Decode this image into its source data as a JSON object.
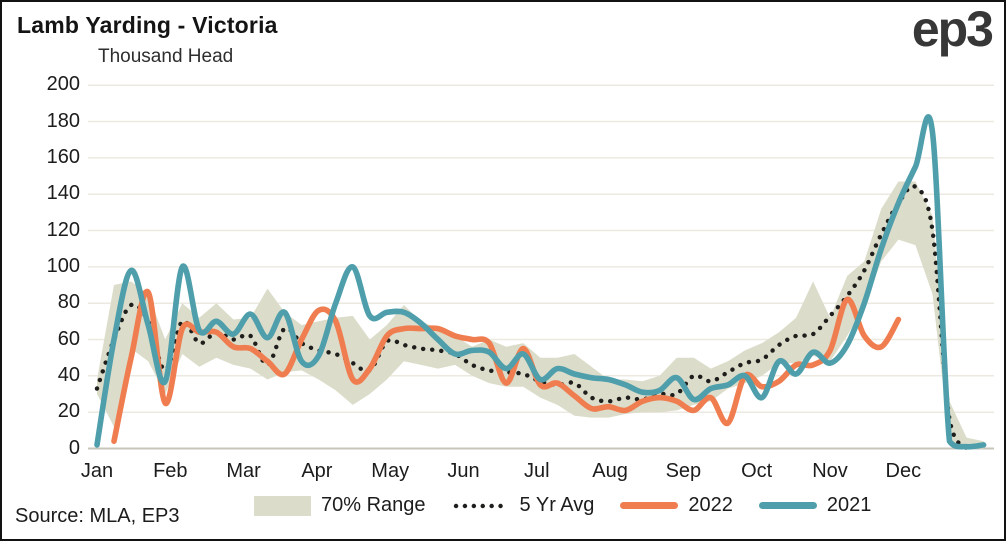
{
  "meta": {
    "title": "Lamb Yarding - Victoria",
    "units_label": "Thousand Head",
    "source": "Source: MLA, EP3",
    "logo": "ep3"
  },
  "colors": {
    "band": "#DCDCCA",
    "avg": "#1E1E1C",
    "y2022": "#EF7D4F",
    "y2021": "#4E9FAB",
    "grid": "#ECEAE0",
    "axis": "#C7C5BA"
  },
  "legend": [
    {
      "label": "70% Range",
      "type": "band"
    },
    {
      "label": "5 Yr Avg",
      "type": "dotted"
    },
    {
      "label": "2022",
      "type": "line"
    },
    {
      "label": "2021",
      "type": "line"
    }
  ],
  "chart_data": {
    "type": "line",
    "title": "Lamb Yarding - Victoria",
    "ylabel": "Thousand Head",
    "ylim": [
      0,
      200
    ],
    "y_ticks": [
      0,
      20,
      40,
      60,
      80,
      100,
      120,
      140,
      160,
      180,
      200
    ],
    "x_tick_labels": [
      "Jan",
      "Feb",
      "Mar",
      "Apr",
      "May",
      "Jun",
      "Jul",
      "Aug",
      "Sep",
      "Oct",
      "Nov",
      "Dec"
    ],
    "x_resolution": "weekly",
    "grid": true,
    "legend_position": "bottom",
    "series": [
      {
        "name": "70% Range",
        "type": "band",
        "lower": [
          30,
          12,
          55,
          48,
          30,
          52,
          45,
          50,
          46,
          44,
          38,
          42,
          43,
          38,
          32,
          24,
          30,
          38,
          48,
          46,
          44,
          46,
          40,
          36,
          34,
          34,
          28,
          24,
          18,
          17,
          17,
          19,
          20,
          20,
          21,
          24,
          26,
          33,
          36,
          40,
          47,
          47,
          51,
          48,
          62,
          78,
          103,
          115,
          112,
          85,
          4,
          0,
          0
        ],
        "upper": [
          38,
          90,
          92,
          85,
          60,
          80,
          72,
          80,
          71,
          72,
          88,
          75,
          68,
          70,
          72,
          73,
          60,
          68,
          79,
          70,
          66,
          62,
          56,
          60,
          56,
          58,
          50,
          50,
          52,
          45,
          38,
          38,
          37,
          40,
          50,
          50,
          44,
          48,
          54,
          58,
          64,
          72,
          92,
          72,
          95,
          103,
          132,
          147,
          147,
          128,
          26,
          6,
          4
        ]
      },
      {
        "name": "5 Yr Avg",
        "type": "dotted",
        "values": [
          33,
          60,
          79,
          70,
          43,
          70,
          58,
          64,
          60,
          62,
          46,
          66,
          58,
          54,
          52,
          47,
          43,
          59,
          57,
          55,
          54,
          52,
          46,
          43,
          42,
          41,
          37,
          35,
          36,
          28,
          26,
          28,
          27,
          30,
          30,
          40,
          37,
          42,
          47,
          49,
          57,
          62,
          63,
          73,
          84,
          98,
          118,
          135,
          144,
          120,
          16,
          0,
          null
        ]
      },
      {
        "name": "2022",
        "type": "line",
        "values": [
          null,
          4,
          50,
          86,
          25,
          66,
          64,
          64,
          56,
          55,
          48,
          41,
          60,
          76,
          70,
          38,
          44,
          62,
          66,
          66,
          66,
          62,
          60,
          58,
          36,
          55,
          35,
          36,
          29,
          22,
          23,
          21,
          26,
          28,
          26,
          21,
          28,
          14,
          40,
          34,
          37,
          46,
          46,
          54,
          82,
          62,
          56,
          71,
          null,
          null,
          null,
          null,
          null
        ]
      },
      {
        "name": "2021",
        "type": "line",
        "values": [
          2,
          60,
          98,
          68,
          37,
          100,
          65,
          70,
          63,
          74,
          61,
          75,
          48,
          51,
          80,
          100,
          73,
          75,
          75,
          69,
          60,
          52,
          54,
          53,
          44,
          52,
          38,
          44,
          41,
          39,
          38,
          35,
          31,
          32,
          39,
          27,
          33,
          35,
          40,
          28,
          48,
          41,
          53,
          47,
          57,
          80,
          110,
          135,
          155,
          174,
          4,
          1,
          2
        ]
      }
    ]
  }
}
